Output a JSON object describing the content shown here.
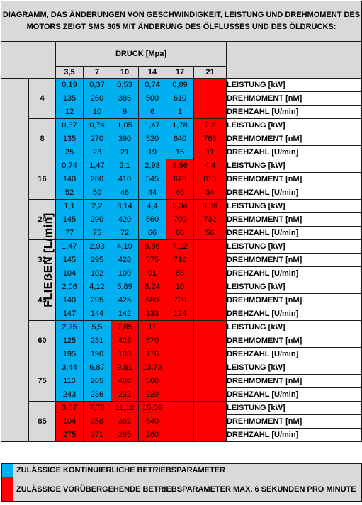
{
  "title": "DIAGRAMM, DAS ÄNDERUNGEN VON GESCHWINDIGKEIT, LEISTUNG UND DREHMOMENT DES MOTORS ZEIGT SMS 305 MIT ÄNDERUNG DES ÖLFLUSSES UND DES ÖLDRUCKS:",
  "pressure_header": "DRUCK  [Mpa]",
  "pressures": [
    "3,5",
    "7",
    "10",
    "14",
    "17",
    "21"
  ],
  "flow_header": "FLIEẞEN [L/min]",
  "row_labels": [
    "LEISTUNG [kW]",
    "DREHMOMENT [nM]",
    "DREHZAHL [U/min]"
  ],
  "colors": {
    "blue": "#00b0f0",
    "red": "#ff0000",
    "grey": "#d9d9d9"
  },
  "groups": [
    {
      "flow": "4",
      "cells": [
        {
          "c": "blue",
          "v": [
            "0,19",
            "135",
            "12"
          ]
        },
        {
          "c": "blue",
          "v": [
            "0,37",
            "260",
            "10"
          ]
        },
        {
          "c": "blue",
          "v": [
            "0,53",
            "386",
            "9"
          ]
        },
        {
          "c": "blue",
          "v": [
            "0,74",
            "500",
            "6"
          ]
        },
        {
          "c": "blue",
          "v": [
            "0,89",
            "610",
            "1"
          ]
        },
        {
          "c": "red",
          "v": [
            "",
            "",
            ""
          ]
        }
      ]
    },
    {
      "flow": "8",
      "cells": [
        {
          "c": "blue",
          "v": [
            "0,37",
            "135",
            "25"
          ]
        },
        {
          "c": "blue",
          "v": [
            "0,74",
            "270",
            "23"
          ]
        },
        {
          "c": "blue",
          "v": [
            "1,05",
            "390",
            "21"
          ]
        },
        {
          "c": "blue",
          "v": [
            "1,47",
            "520",
            "19"
          ]
        },
        {
          "c": "blue",
          "v": [
            "1,78",
            "640",
            "15"
          ]
        },
        {
          "c": "red",
          "v": [
            "2,2",
            "768",
            "11"
          ]
        }
      ]
    },
    {
      "flow": "16",
      "cells": [
        {
          "c": "blue",
          "v": [
            "0,74",
            "140",
            "52"
          ]
        },
        {
          "c": "blue",
          "v": [
            "1,47",
            "280",
            "50"
          ]
        },
        {
          "c": "blue",
          "v": [
            "2,1",
            "410",
            "48"
          ]
        },
        {
          "c": "blue",
          "v": [
            "2,93",
            "545",
            "44"
          ]
        },
        {
          "c": "red",
          "v": [
            "3,56",
            "675",
            "40"
          ]
        },
        {
          "c": "red",
          "v": [
            "4,4",
            "815",
            "34"
          ]
        }
      ]
    },
    {
      "flow": "24",
      "cells": [
        {
          "c": "blue",
          "v": [
            "1,1",
            "145",
            "77"
          ]
        },
        {
          "c": "blue",
          "v": [
            "2,2",
            "290",
            "75"
          ]
        },
        {
          "c": "blue",
          "v": [
            "3,14",
            "420",
            "72"
          ]
        },
        {
          "c": "blue",
          "v": [
            "4,4",
            "560",
            "66"
          ]
        },
        {
          "c": "red",
          "v": [
            "5,34",
            "700",
            "60"
          ]
        },
        {
          "c": "red",
          "v": [
            "6,59",
            "732",
            "56"
          ]
        }
      ]
    },
    {
      "flow": "32",
      "cells": [
        {
          "c": "blue",
          "v": [
            "1,47",
            "145",
            "104"
          ]
        },
        {
          "c": "blue",
          "v": [
            "2,93",
            "295",
            "102"
          ]
        },
        {
          "c": "blue",
          "v": [
            "4,19",
            "428",
            "100"
          ]
        },
        {
          "c": "red",
          "v": [
            "5,86",
            "575",
            "91"
          ]
        },
        {
          "c": "red",
          "v": [
            "7,12",
            "710",
            "85"
          ]
        },
        {
          "c": "red",
          "v": [
            "",
            "",
            ""
          ]
        }
      ]
    },
    {
      "flow": "45",
      "cells": [
        {
          "c": "blue",
          "v": [
            "2,06",
            "140",
            "147"
          ]
        },
        {
          "c": "blue",
          "v": [
            "4,12",
            "295",
            "144"
          ]
        },
        {
          "c": "blue",
          "v": [
            "5,89",
            "425",
            "142"
          ]
        },
        {
          "c": "red",
          "v": [
            "8,24",
            "580",
            "133"
          ]
        },
        {
          "c": "red",
          "v": [
            "10",
            "720",
            "124"
          ]
        },
        {
          "c": "red",
          "v": [
            "",
            "",
            ""
          ]
        }
      ]
    },
    {
      "flow": "60",
      "cells": [
        {
          "c": "blue",
          "v": [
            "2,75",
            "125",
            "195"
          ]
        },
        {
          "c": "blue",
          "v": [
            "5,5",
            "281",
            "190"
          ]
        },
        {
          "c": "red",
          "v": [
            "7,85",
            "423",
            "185"
          ]
        },
        {
          "c": "red",
          "v": [
            "11",
            "570",
            "176"
          ]
        },
        {
          "c": "red",
          "v": [
            "",
            "",
            ""
          ]
        },
        {
          "c": "red",
          "v": [
            "",
            "",
            ""
          ]
        }
      ]
    },
    {
      "flow": "75",
      "cells": [
        {
          "c": "blue",
          "v": [
            "3,44",
            "110",
            "243"
          ]
        },
        {
          "c": "blue",
          "v": [
            "6,87",
            "265",
            "236"
          ]
        },
        {
          "c": "red",
          "v": [
            "9,81",
            "408",
            "232"
          ]
        },
        {
          "c": "red",
          "v": [
            "13,73",
            "560",
            "220"
          ]
        },
        {
          "c": "red",
          "v": [
            "",
            "",
            ""
          ]
        },
        {
          "c": "red",
          "v": [
            "",
            "",
            ""
          ]
        }
      ]
    },
    {
      "flow": "85",
      "cells": [
        {
          "c": "red",
          "v": [
            "3,67",
            "104",
            "275"
          ]
        },
        {
          "c": "red",
          "v": [
            "7,78",
            "258",
            "271"
          ]
        },
        {
          "c": "red",
          "v": [
            "11,12",
            "382",
            "265"
          ]
        },
        {
          "c": "red",
          "v": [
            "15,56",
            "540",
            "260"
          ]
        },
        {
          "c": "red",
          "v": [
            "",
            "",
            ""
          ]
        },
        {
          "c": "red",
          "v": [
            "",
            "",
            ""
          ]
        }
      ]
    }
  ],
  "legend": [
    {
      "c": "blue",
      "text": "ZULÄSSIGE KONTINUIERLICHE BETRIEBSPARAMETER"
    },
    {
      "c": "red",
      "text": "ZULÄSSIGE VORÜBERGEHENDE BETRIEBSPARAMETER MAX. 6 SEKUNDEN PRO MINUTE"
    }
  ]
}
